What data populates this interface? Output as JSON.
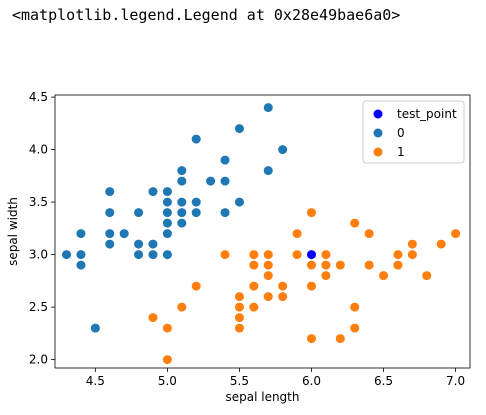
{
  "output": {
    "repr_text": "<matplotlib.legend.Legend at 0x28e49bae6a0>"
  },
  "colors": {
    "class_0": "#1f77b4",
    "class_1": "#ff7f0e",
    "test_point": "#0000ff"
  },
  "chart_data": {
    "type": "scatter",
    "title": "",
    "xlabel": "sepal length",
    "ylabel": "sepal width",
    "xlim": [
      4.22,
      7.1
    ],
    "ylim": [
      1.92,
      4.52
    ],
    "xticks": [
      4.5,
      5.0,
      5.5,
      6.0,
      6.5,
      7.0
    ],
    "xtick_labels": [
      "4.5",
      "5.0",
      "5.5",
      "6.0",
      "6.5",
      "7.0"
    ],
    "yticks": [
      2.0,
      2.5,
      3.0,
      3.5,
      4.0,
      4.5
    ],
    "ytick_labels": [
      "2.0",
      "2.5",
      "3.0",
      "3.5",
      "4.0",
      "4.5"
    ],
    "grid": false,
    "legend_position": "top-right",
    "legend": [
      "test_point",
      "0",
      "1"
    ],
    "series": [
      {
        "name": "0",
        "color": "#1f77b4",
        "points": [
          [
            4.3,
            3.0
          ],
          [
            4.4,
            3.0
          ],
          [
            4.4,
            3.2
          ],
          [
            4.4,
            2.9
          ],
          [
            4.5,
            2.3
          ],
          [
            4.6,
            3.1
          ],
          [
            4.6,
            3.4
          ],
          [
            4.6,
            3.6
          ],
          [
            4.6,
            3.2
          ],
          [
            4.7,
            3.2
          ],
          [
            4.8,
            3.0
          ],
          [
            4.8,
            3.1
          ],
          [
            4.8,
            3.4
          ],
          [
            4.9,
            3.0
          ],
          [
            4.9,
            3.1
          ],
          [
            4.9,
            3.6
          ],
          [
            5.0,
            3.0
          ],
          [
            5.0,
            3.2
          ],
          [
            5.0,
            3.3
          ],
          [
            5.0,
            3.4
          ],
          [
            5.0,
            3.5
          ],
          [
            5.0,
            3.6
          ],
          [
            5.1,
            3.3
          ],
          [
            5.1,
            3.4
          ],
          [
            5.1,
            3.5
          ],
          [
            5.1,
            3.7
          ],
          [
            5.1,
            3.8
          ],
          [
            5.2,
            3.4
          ],
          [
            5.2,
            3.5
          ],
          [
            5.2,
            4.1
          ],
          [
            5.3,
            3.7
          ],
          [
            5.4,
            3.4
          ],
          [
            5.4,
            3.7
          ],
          [
            5.4,
            3.9
          ],
          [
            5.5,
            3.5
          ],
          [
            5.5,
            4.2
          ],
          [
            5.7,
            3.8
          ],
          [
            5.7,
            4.4
          ],
          [
            5.8,
            4.0
          ]
        ]
      },
      {
        "name": "1",
        "color": "#ff7f0e",
        "points": [
          [
            4.9,
            2.4
          ],
          [
            5.0,
            2.0
          ],
          [
            5.0,
            2.3
          ],
          [
            5.1,
            2.5
          ],
          [
            5.2,
            2.7
          ],
          [
            5.4,
            3.0
          ],
          [
            5.5,
            2.3
          ],
          [
            5.5,
            2.4
          ],
          [
            5.5,
            2.5
          ],
          [
            5.5,
            2.6
          ],
          [
            5.6,
            2.5
          ],
          [
            5.6,
            2.7
          ],
          [
            5.6,
            2.9
          ],
          [
            5.6,
            3.0
          ],
          [
            5.7,
            2.6
          ],
          [
            5.7,
            2.8
          ],
          [
            5.7,
            2.9
          ],
          [
            5.7,
            3.0
          ],
          [
            5.8,
            2.6
          ],
          [
            5.8,
            2.7
          ],
          [
            5.9,
            3.0
          ],
          [
            5.9,
            3.2
          ],
          [
            6.0,
            2.2
          ],
          [
            6.0,
            2.7
          ],
          [
            6.0,
            2.9
          ],
          [
            6.0,
            3.4
          ],
          [
            6.1,
            2.8
          ],
          [
            6.1,
            2.9
          ],
          [
            6.1,
            3.0
          ],
          [
            6.2,
            2.2
          ],
          [
            6.2,
            2.9
          ],
          [
            6.3,
            2.3
          ],
          [
            6.3,
            2.5
          ],
          [
            6.3,
            3.3
          ],
          [
            6.4,
            2.9
          ],
          [
            6.4,
            3.2
          ],
          [
            6.5,
            2.8
          ],
          [
            6.6,
            2.9
          ],
          [
            6.6,
            3.0
          ],
          [
            6.7,
            3.0
          ],
          [
            6.7,
            3.1
          ],
          [
            6.8,
            2.8
          ],
          [
            6.9,
            3.1
          ],
          [
            7.0,
            3.2
          ]
        ]
      },
      {
        "name": "test_point",
        "color": "#0000ff",
        "points": [
          [
            6.0,
            3.0
          ]
        ]
      }
    ]
  }
}
